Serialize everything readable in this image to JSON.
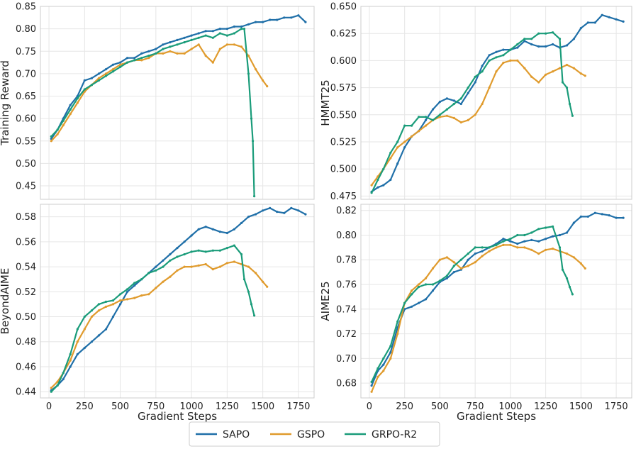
{
  "colors": {
    "SAPO": "#1f6fa8",
    "GSPO": "#e09b2d",
    "GRPO-R2": "#1a9c7a",
    "grid": "#e6e6e6",
    "frame": "#cccccc"
  },
  "legend": {
    "items": [
      "SAPO",
      "GSPO",
      "GRPO-R2"
    ],
    "placement": "bottom-center"
  },
  "chart_data": [
    {
      "type": "line",
      "xlabel": "",
      "ylabel": "Training Reward",
      "xlim": [
        -60,
        1860
      ],
      "ylim": [
        0.42,
        0.85
      ],
      "xticks": [
        0,
        250,
        500,
        750,
        1000,
        1250,
        1500,
        1750
      ],
      "show_xtick_labels": false,
      "yticks": [
        0.45,
        0.5,
        0.55,
        0.6,
        0.65,
        0.7,
        0.75,
        0.8,
        0.85
      ],
      "ytick_labels": [
        "0.45",
        "0.50",
        "0.55",
        "0.60",
        "0.65",
        "0.70",
        "0.75",
        "0.80",
        "0.85"
      ],
      "grid": true,
      "series": [
        {
          "name": "SAPO",
          "x": [
            16,
            60,
            100,
            150,
            200,
            250,
            300,
            350,
            400,
            450,
            500,
            550,
            600,
            650,
            700,
            750,
            800,
            850,
            900,
            950,
            1000,
            1050,
            1100,
            1150,
            1200,
            1250,
            1300,
            1350,
            1400,
            1450,
            1500,
            1550,
            1600,
            1650,
            1700,
            1750,
            1800
          ],
          "y": [
            0.555,
            0.575,
            0.6,
            0.63,
            0.65,
            0.685,
            0.69,
            0.7,
            0.71,
            0.72,
            0.725,
            0.735,
            0.735,
            0.745,
            0.75,
            0.755,
            0.765,
            0.77,
            0.775,
            0.78,
            0.785,
            0.79,
            0.795,
            0.795,
            0.8,
            0.8,
            0.805,
            0.805,
            0.81,
            0.815,
            0.815,
            0.82,
            0.82,
            0.825,
            0.825,
            0.83,
            0.815
          ]
        },
        {
          "name": "GSPO",
          "x": [
            16,
            60,
            100,
            150,
            200,
            250,
            300,
            350,
            400,
            450,
            500,
            550,
            600,
            650,
            700,
            750,
            800,
            850,
            900,
            950,
            1000,
            1050,
            1100,
            1150,
            1200,
            1250,
            1300,
            1350,
            1400,
            1450,
            1500,
            1530
          ],
          "y": [
            0.55,
            0.565,
            0.585,
            0.61,
            0.635,
            0.66,
            0.675,
            0.69,
            0.7,
            0.71,
            0.72,
            0.725,
            0.73,
            0.73,
            0.735,
            0.745,
            0.745,
            0.75,
            0.745,
            0.745,
            0.755,
            0.765,
            0.74,
            0.725,
            0.755,
            0.765,
            0.765,
            0.76,
            0.74,
            0.71,
            0.685,
            0.672
          ]
        },
        {
          "name": "GRPO-R2",
          "x": [
            16,
            60,
            100,
            150,
            200,
            250,
            300,
            350,
            400,
            450,
            500,
            550,
            600,
            650,
            700,
            750,
            800,
            850,
            900,
            950,
            1000,
            1050,
            1100,
            1150,
            1200,
            1250,
            1300,
            1350,
            1370,
            1400,
            1420,
            1430,
            1440
          ],
          "y": [
            0.56,
            0.575,
            0.595,
            0.62,
            0.645,
            0.665,
            0.675,
            0.685,
            0.695,
            0.705,
            0.715,
            0.725,
            0.73,
            0.735,
            0.74,
            0.745,
            0.755,
            0.76,
            0.765,
            0.77,
            0.775,
            0.78,
            0.785,
            0.78,
            0.79,
            0.785,
            0.79,
            0.8,
            0.8,
            0.7,
            0.6,
            0.55,
            0.427
          ]
        }
      ]
    },
    {
      "type": "line",
      "xlabel": "",
      "ylabel": "HMMT25",
      "xlim": [
        -60,
        1860
      ],
      "ylim": [
        0.472,
        0.65
      ],
      "xticks": [
        0,
        250,
        500,
        750,
        1000,
        1250,
        1500,
        1750
      ],
      "show_xtick_labels": false,
      "yticks": [
        0.475,
        0.5,
        0.525,
        0.55,
        0.575,
        0.6,
        0.625,
        0.65
      ],
      "ytick_labels": [
        "0.475",
        "0.500",
        "0.525",
        "0.550",
        "0.575",
        "0.600",
        "0.625",
        "0.650"
      ],
      "grid": true,
      "series": [
        {
          "name": "SAPO",
          "x": [
            16,
            60,
            100,
            150,
            200,
            250,
            300,
            350,
            400,
            450,
            500,
            550,
            600,
            650,
            700,
            750,
            800,
            850,
            900,
            950,
            1000,
            1050,
            1100,
            1150,
            1200,
            1250,
            1300,
            1350,
            1400,
            1450,
            1500,
            1550,
            1600,
            1650,
            1700,
            1750,
            1800
          ],
          "y": [
            0.479,
            0.483,
            0.485,
            0.49,
            0.505,
            0.52,
            0.53,
            0.535,
            0.545,
            0.555,
            0.562,
            0.565,
            0.563,
            0.56,
            0.57,
            0.58,
            0.595,
            0.605,
            0.608,
            0.61,
            0.61,
            0.612,
            0.618,
            0.615,
            0.613,
            0.613,
            0.615,
            0.612,
            0.614,
            0.62,
            0.63,
            0.635,
            0.635,
            0.642,
            0.64,
            0.638,
            0.636
          ]
        },
        {
          "name": "GSPO",
          "x": [
            16,
            60,
            100,
            150,
            200,
            250,
            300,
            350,
            400,
            450,
            500,
            550,
            600,
            650,
            700,
            750,
            800,
            850,
            900,
            950,
            1000,
            1050,
            1100,
            1150,
            1200,
            1250,
            1300,
            1350,
            1400,
            1450,
            1500,
            1530
          ],
          "y": [
            0.485,
            0.493,
            0.5,
            0.51,
            0.52,
            0.525,
            0.53,
            0.535,
            0.54,
            0.545,
            0.548,
            0.549,
            0.547,
            0.543,
            0.545,
            0.55,
            0.56,
            0.575,
            0.59,
            0.598,
            0.6,
            0.6,
            0.593,
            0.585,
            0.58,
            0.587,
            0.59,
            0.593,
            0.596,
            0.593,
            0.588,
            0.586
          ]
        },
        {
          "name": "GRPO-R2",
          "x": [
            16,
            60,
            100,
            150,
            200,
            250,
            300,
            350,
            400,
            450,
            500,
            550,
            600,
            650,
            700,
            750,
            800,
            850,
            900,
            950,
            1000,
            1050,
            1100,
            1150,
            1200,
            1250,
            1300,
            1350,
            1370,
            1400,
            1420,
            1440
          ],
          "y": [
            0.478,
            0.49,
            0.5,
            0.515,
            0.525,
            0.54,
            0.54,
            0.548,
            0.548,
            0.545,
            0.55,
            0.555,
            0.56,
            0.565,
            0.575,
            0.585,
            0.59,
            0.6,
            0.603,
            0.605,
            0.61,
            0.615,
            0.62,
            0.62,
            0.625,
            0.625,
            0.626,
            0.62,
            0.58,
            0.575,
            0.56,
            0.549
          ]
        }
      ]
    },
    {
      "type": "line",
      "xlabel": "Gradient Steps",
      "ylabel": "BeyondAIME",
      "xlim": [
        -60,
        1860
      ],
      "ylim": [
        0.435,
        0.59
      ],
      "xticks": [
        0,
        250,
        500,
        750,
        1000,
        1250,
        1500,
        1750
      ],
      "xtick_labels": [
        "0",
        "250",
        "500",
        "750",
        "1000",
        "1250",
        "1500",
        "1750"
      ],
      "show_xtick_labels": true,
      "yticks": [
        0.44,
        0.46,
        0.48,
        0.5,
        0.52,
        0.54,
        0.56,
        0.58
      ],
      "ytick_labels": [
        "0.44",
        "0.46",
        "0.48",
        "0.50",
        "0.52",
        "0.54",
        "0.56",
        "0.58"
      ],
      "grid": true,
      "series": [
        {
          "name": "SAPO",
          "x": [
            16,
            60,
            100,
            150,
            200,
            250,
            300,
            350,
            400,
            450,
            500,
            550,
            600,
            650,
            700,
            750,
            800,
            850,
            900,
            950,
            1000,
            1050,
            1100,
            1150,
            1200,
            1250,
            1300,
            1350,
            1400,
            1450,
            1500,
            1550,
            1600,
            1650,
            1700,
            1750,
            1800
          ],
          "y": [
            0.441,
            0.445,
            0.45,
            0.46,
            0.47,
            0.475,
            0.48,
            0.485,
            0.49,
            0.5,
            0.51,
            0.52,
            0.525,
            0.53,
            0.535,
            0.54,
            0.545,
            0.55,
            0.555,
            0.56,
            0.565,
            0.57,
            0.572,
            0.57,
            0.568,
            0.567,
            0.57,
            0.575,
            0.58,
            0.582,
            0.585,
            0.587,
            0.584,
            0.583,
            0.587,
            0.585,
            0.582
          ]
        },
        {
          "name": "GSPO",
          "x": [
            16,
            60,
            100,
            150,
            200,
            250,
            300,
            350,
            400,
            450,
            500,
            550,
            600,
            650,
            700,
            750,
            800,
            850,
            900,
            950,
            1000,
            1050,
            1100,
            1150,
            1200,
            1250,
            1300,
            1350,
            1400,
            1450,
            1500,
            1530
          ],
          "y": [
            0.443,
            0.448,
            0.455,
            0.465,
            0.48,
            0.49,
            0.5,
            0.505,
            0.508,
            0.51,
            0.513,
            0.514,
            0.515,
            0.517,
            0.518,
            0.523,
            0.528,
            0.532,
            0.537,
            0.54,
            0.54,
            0.541,
            0.542,
            0.538,
            0.54,
            0.543,
            0.544,
            0.542,
            0.54,
            0.535,
            0.528,
            0.524
          ]
        },
        {
          "name": "GRPO-R2",
          "x": [
            16,
            60,
            100,
            150,
            200,
            250,
            300,
            350,
            400,
            450,
            500,
            550,
            600,
            650,
            700,
            750,
            800,
            850,
            900,
            950,
            1000,
            1050,
            1100,
            1150,
            1200,
            1250,
            1300,
            1350,
            1370,
            1400,
            1420,
            1440
          ],
          "y": [
            0.44,
            0.445,
            0.455,
            0.47,
            0.49,
            0.5,
            0.505,
            0.51,
            0.512,
            0.513,
            0.518,
            0.522,
            0.527,
            0.53,
            0.535,
            0.537,
            0.54,
            0.545,
            0.548,
            0.55,
            0.552,
            0.553,
            0.552,
            0.553,
            0.553,
            0.555,
            0.557,
            0.55,
            0.53,
            0.52,
            0.51,
            0.501
          ]
        }
      ]
    },
    {
      "type": "line",
      "xlabel": "Gradient Steps",
      "ylabel": "AIME25",
      "xlim": [
        -60,
        1860
      ],
      "ylim": [
        0.668,
        0.825
      ],
      "xticks": [
        0,
        250,
        500,
        750,
        1000,
        1250,
        1500,
        1750
      ],
      "xtick_labels": [
        "0",
        "250",
        "500",
        "750",
        "1000",
        "1250",
        "1500",
        "1750"
      ],
      "show_xtick_labels": true,
      "yticks": [
        0.68,
        0.7,
        0.72,
        0.74,
        0.76,
        0.78,
        0.8,
        0.82
      ],
      "ytick_labels": [
        "0.68",
        "0.70",
        "0.72",
        "0.74",
        "0.76",
        "0.78",
        "0.80",
        "0.82"
      ],
      "grid": true,
      "series": [
        {
          "name": "SAPO",
          "x": [
            16,
            60,
            100,
            150,
            200,
            250,
            300,
            350,
            400,
            450,
            500,
            550,
            600,
            650,
            700,
            750,
            800,
            850,
            900,
            950,
            1000,
            1050,
            1100,
            1150,
            1200,
            1250,
            1300,
            1350,
            1400,
            1450,
            1500,
            1550,
            1600,
            1650,
            1700,
            1750,
            1800
          ],
          "y": [
            0.678,
            0.69,
            0.695,
            0.705,
            0.725,
            0.74,
            0.742,
            0.745,
            0.748,
            0.755,
            0.762,
            0.765,
            0.77,
            0.772,
            0.78,
            0.785,
            0.787,
            0.79,
            0.793,
            0.797,
            0.795,
            0.793,
            0.795,
            0.796,
            0.795,
            0.797,
            0.799,
            0.8,
            0.802,
            0.81,
            0.815,
            0.815,
            0.818,
            0.817,
            0.816,
            0.814,
            0.814
          ]
        },
        {
          "name": "GSPO",
          "x": [
            16,
            60,
            100,
            150,
            200,
            250,
            300,
            350,
            400,
            450,
            500,
            550,
            600,
            650,
            700,
            750,
            800,
            850,
            900,
            950,
            1000,
            1050,
            1100,
            1150,
            1200,
            1250,
            1300,
            1350,
            1400,
            1450,
            1500,
            1530
          ],
          "y": [
            0.673,
            0.685,
            0.69,
            0.7,
            0.72,
            0.745,
            0.755,
            0.76,
            0.765,
            0.773,
            0.78,
            0.782,
            0.778,
            0.773,
            0.775,
            0.778,
            0.783,
            0.787,
            0.79,
            0.792,
            0.792,
            0.79,
            0.79,
            0.788,
            0.785,
            0.788,
            0.789,
            0.787,
            0.785,
            0.782,
            0.777,
            0.773
          ]
        },
        {
          "name": "GRPO-R2",
          "x": [
            16,
            60,
            100,
            150,
            200,
            250,
            300,
            350,
            400,
            450,
            500,
            550,
            600,
            650,
            700,
            750,
            800,
            850,
            900,
            950,
            1000,
            1050,
            1100,
            1150,
            1200,
            1250,
            1300,
            1350,
            1370,
            1400,
            1420,
            1440
          ],
          "y": [
            0.681,
            0.692,
            0.7,
            0.71,
            0.73,
            0.745,
            0.752,
            0.758,
            0.76,
            0.76,
            0.763,
            0.767,
            0.775,
            0.78,
            0.785,
            0.79,
            0.79,
            0.79,
            0.792,
            0.795,
            0.797,
            0.8,
            0.8,
            0.802,
            0.805,
            0.806,
            0.807,
            0.79,
            0.772,
            0.765,
            0.758,
            0.752
          ]
        }
      ]
    }
  ]
}
